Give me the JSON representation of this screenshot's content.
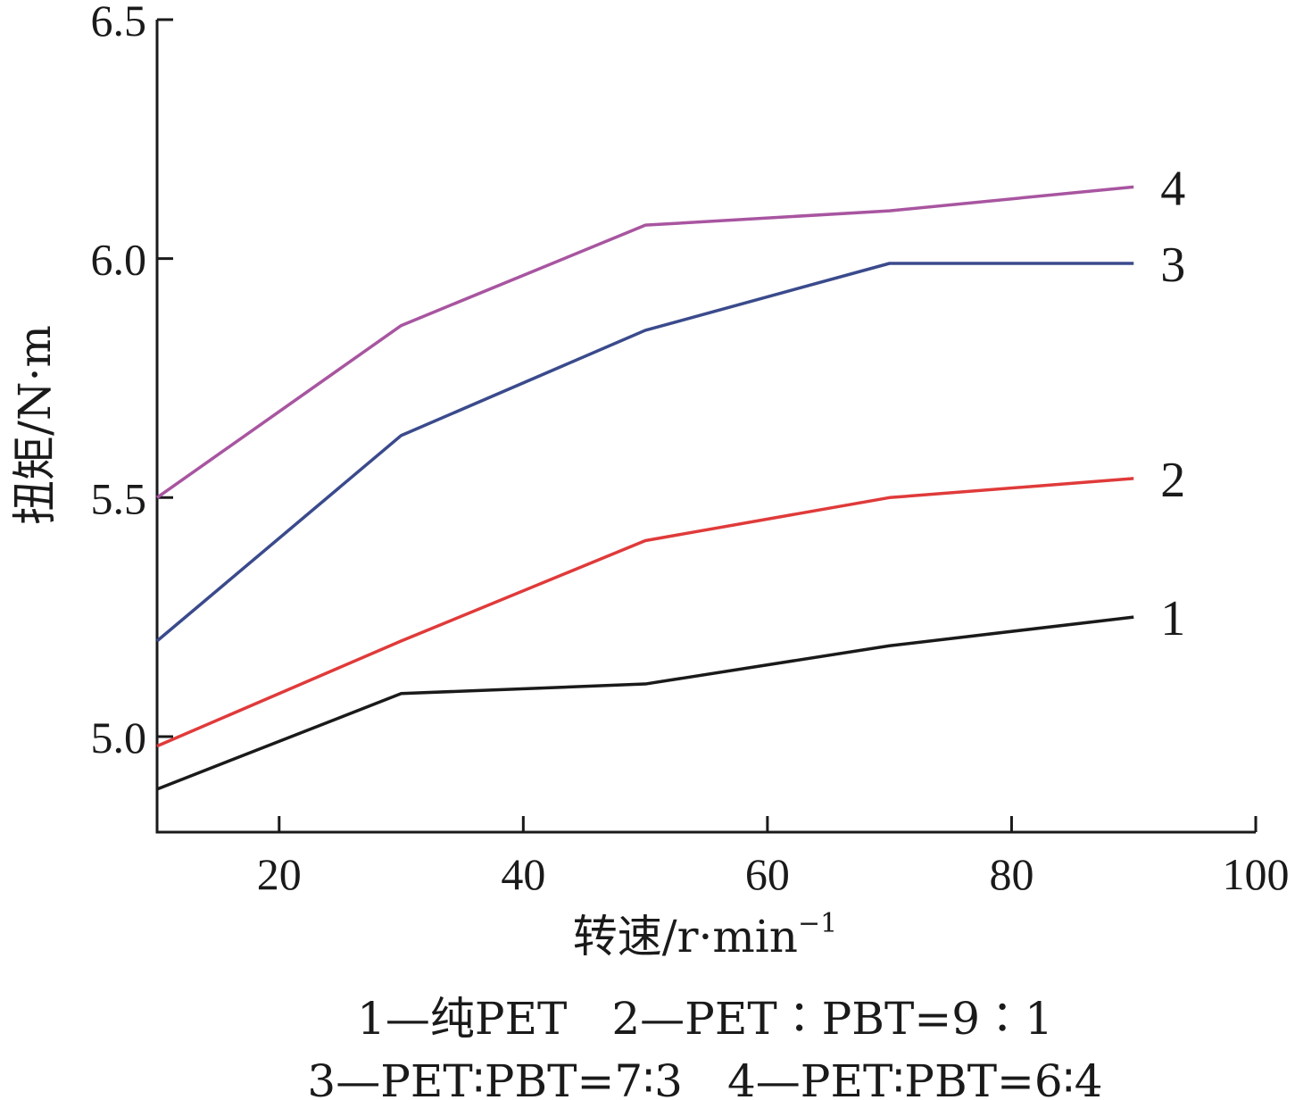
{
  "chart_data": {
    "type": "line",
    "xlabel": "转速/r·min",
    "xlabel_sup": "−1",
    "ylabel": "扭矩/N·m",
    "xlim": [
      10,
      100
    ],
    "ylim": [
      4.8,
      6.5
    ],
    "xticks": [
      20,
      40,
      60,
      80,
      100
    ],
    "yticks": [
      "5.0",
      "5.5",
      "6.0",
      "6.5"
    ],
    "x": [
      10,
      30,
      50,
      70,
      90
    ],
    "series": [
      {
        "name": "1",
        "color": "#1a1a1a",
        "values": [
          4.89,
          5.09,
          5.11,
          5.19,
          5.25
        ]
      },
      {
        "name": "2",
        "color": "#e03a3a",
        "values": [
          4.98,
          5.2,
          5.41,
          5.5,
          5.54
        ]
      },
      {
        "name": "3",
        "color": "#3a4a8c",
        "values": [
          5.2,
          5.63,
          5.85,
          5.99,
          5.99
        ]
      },
      {
        "name": "4",
        "color": "#a855a0",
        "values": [
          5.5,
          5.86,
          6.07,
          6.1,
          6.15
        ]
      }
    ],
    "legend": [
      "1—纯PET　2—PET∶PBT=9∶1",
      "3—PET∶PBT=7∶3　4—PET∶PBT=6∶4"
    ]
  }
}
